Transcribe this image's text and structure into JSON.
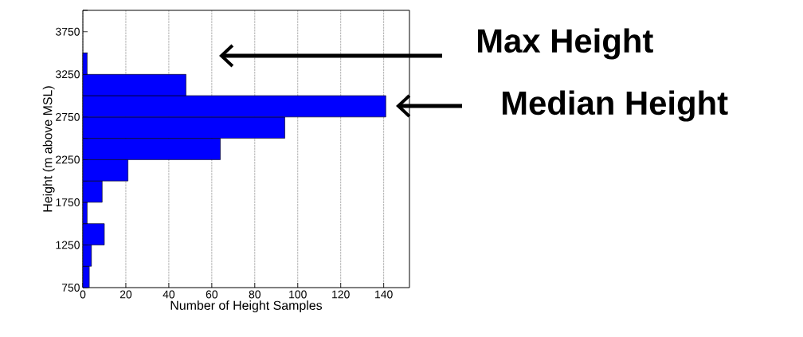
{
  "chart_data": {
    "type": "histogram",
    "orientation": "horizontal",
    "xlabel": "Number of Height Samples",
    "ylabel": "Height (m above MSL)",
    "bins": [
      750,
      1000,
      1250,
      1500,
      1750,
      2000,
      2250,
      2500,
      2750,
      3000,
      3250,
      3500
    ],
    "values": [
      3,
      4,
      10,
      2,
      9,
      21,
      64,
      94,
      141,
      48,
      2
    ],
    "color": "#0000ff",
    "xlim": [
      0,
      152
    ],
    "ylim": [
      750,
      4000
    ],
    "xticks": [
      0,
      20,
      40,
      60,
      80,
      100,
      120,
      140
    ],
    "yticks": [
      750,
      {
        "value": 1000,
        "label": null
      },
      1250,
      {
        "value": 1500,
        "label": null
      },
      1750,
      {
        "value": 2000,
        "label": null
      },
      2250,
      {
        "value": 2500,
        "label": null
      },
      2750,
      {
        "value": 3000,
        "label": null
      },
      3250,
      {
        "value": 3500,
        "label": null
      },
      3750,
      {
        "value": 4000,
        "label": null
      }
    ],
    "grid": "x",
    "annotations": [
      "Max Height",
      "Median Height"
    ]
  }
}
